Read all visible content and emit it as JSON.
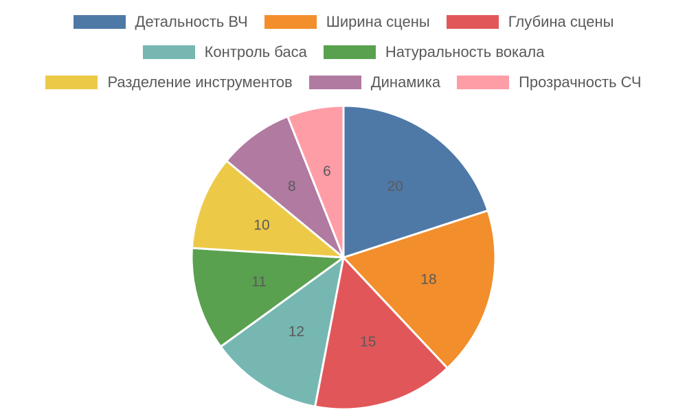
{
  "chart_data": {
    "type": "pie",
    "title": "",
    "legend_position": "top",
    "slices": [
      {
        "label": "Детальность ВЧ",
        "value": 20,
        "color": "#4e79a7"
      },
      {
        "label": "Ширина сцены",
        "value": 18,
        "color": "#f28e2b"
      },
      {
        "label": "Глубина сцены",
        "value": 15,
        "color": "#e15759"
      },
      {
        "label": "Контроль баса",
        "value": 12,
        "color": "#76b7b2"
      },
      {
        "label": "Натуральность вокала",
        "value": 11,
        "color": "#59a14f"
      },
      {
        "label": "Разделение инструментов",
        "value": 10,
        "color": "#edc948"
      },
      {
        "label": "Динамика",
        "value": 8,
        "color": "#b07aa1"
      },
      {
        "label": "Прозрачность СЧ",
        "value": 6,
        "color": "#ff9da7"
      }
    ]
  }
}
